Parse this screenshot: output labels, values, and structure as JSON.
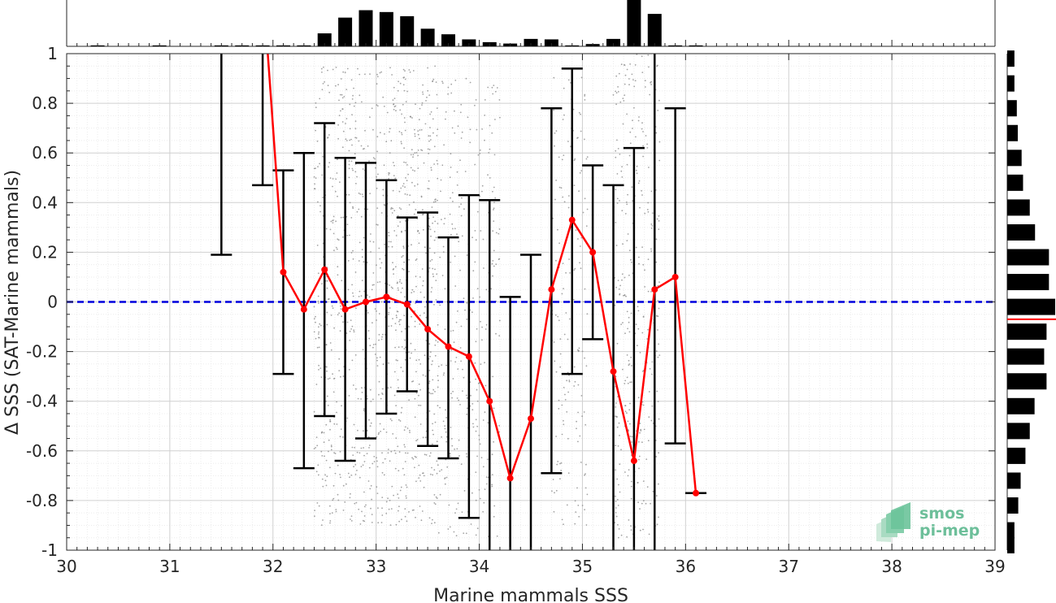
{
  "chart_data": {
    "type": "line",
    "xlabel": "Marine mammals SSS",
    "ylabel": "Δ SSS (SAT-Marine mammals)",
    "xlim": [
      30,
      39
    ],
    "ylim": [
      -1,
      1
    ],
    "xticks": [
      "30",
      "31",
      "32",
      "33",
      "34",
      "35",
      "36",
      "37",
      "38",
      "39"
    ],
    "yticks": [
      "-1",
      "-0.8",
      "-0.6",
      "-0.4",
      "-0.2",
      "0",
      "0.2",
      "0.4",
      "0.6",
      "0.8",
      "1"
    ],
    "grid": true,
    "reference_line": {
      "y": 0,
      "color": "#0000dd",
      "style": "dashed"
    },
    "series": [
      {
        "color": "#ff0000",
        "x": [
          32.1,
          32.3,
          32.5,
          32.7,
          32.9,
          33.1,
          33.3,
          33.5,
          33.7,
          33.9,
          34.1,
          34.3,
          34.5,
          34.7,
          34.9,
          35.1,
          35.3,
          35.5,
          35.7,
          35.9,
          36.1
        ],
        "y": [
          0.12,
          -0.03,
          0.13,
          -0.03,
          0.0,
          0.02,
          -0.01,
          -0.11,
          -0.18,
          -0.22,
          -0.4,
          -0.71,
          -0.47,
          0.05,
          0.33,
          0.2,
          -0.28,
          -0.64,
          0.05,
          0.1,
          -0.77
        ]
      }
    ],
    "error_bars": [
      {
        "x": 31.5,
        "low": 0.19,
        "high": 1.0
      },
      {
        "x": 31.9,
        "low": 0.47,
        "high": 1.0
      },
      {
        "x": 32.1,
        "low": -0.29,
        "high": 0.53
      },
      {
        "x": 32.3,
        "low": -0.67,
        "high": 0.6
      },
      {
        "x": 32.5,
        "low": -0.46,
        "high": 0.72
      },
      {
        "x": 32.7,
        "low": -0.64,
        "high": 0.58
      },
      {
        "x": 32.9,
        "low": -0.55,
        "high": 0.56
      },
      {
        "x": 33.1,
        "low": -0.45,
        "high": 0.49
      },
      {
        "x": 33.3,
        "low": -0.36,
        "high": 0.34
      },
      {
        "x": 33.5,
        "low": -0.58,
        "high": 0.36
      },
      {
        "x": 33.7,
        "low": -0.63,
        "high": 0.26
      },
      {
        "x": 33.9,
        "low": -0.87,
        "high": 0.43
      },
      {
        "x": 34.1,
        "low": -1.0,
        "high": 0.41
      },
      {
        "x": 34.3,
        "low": -1.0,
        "high": 0.02
      },
      {
        "x": 34.5,
        "low": -1.0,
        "high": 0.19
      },
      {
        "x": 34.7,
        "low": -0.69,
        "high": 0.78
      },
      {
        "x": 34.9,
        "low": -0.29,
        "high": 0.94
      },
      {
        "x": 35.1,
        "low": -0.15,
        "high": 0.55
      },
      {
        "x": 35.3,
        "low": -1.0,
        "high": 0.47
      },
      {
        "x": 35.5,
        "low": -1.0,
        "high": 0.62
      },
      {
        "x": 35.7,
        "low": -1.0,
        "high": 1.0
      },
      {
        "x": 35.9,
        "low": -0.57,
        "high": 0.78
      },
      {
        "x": 36.1,
        "low": -0.77,
        "high": -0.77
      }
    ],
    "scatter_regions": [
      {
        "x_from": 32.4,
        "x_to": 33.6,
        "y_from": -0.9,
        "y_to": 0.95,
        "count": 1000
      },
      {
        "x_from": 33.5,
        "x_to": 34.2,
        "y_from": -1.0,
        "y_to": 0.9,
        "count": 360
      },
      {
        "x_from": 34.7,
        "x_to": 35.05,
        "y_from": -0.9,
        "y_to": 0.95,
        "count": 160
      },
      {
        "x_from": 35.3,
        "x_to": 35.75,
        "y_from": -0.95,
        "y_to": 1.0,
        "count": 340
      }
    ],
    "top_histogram": {
      "bin_centers": [
        30.3,
        30.5,
        30.7,
        30.9,
        31.1,
        31.3,
        31.5,
        31.7,
        31.9,
        32.1,
        32.3,
        32.5,
        32.7,
        32.9,
        33.1,
        33.3,
        33.5,
        33.7,
        33.9,
        34.1,
        34.3,
        34.5,
        34.7,
        34.9,
        35.1,
        35.3,
        35.5,
        35.7,
        35.9,
        36.1
      ],
      "values": [
        0.02,
        0,
        0,
        0.02,
        0,
        0,
        0.02,
        0.02,
        0.02,
        0.02,
        0.02,
        0.28,
        0.62,
        0.78,
        0.74,
        0.65,
        0.38,
        0.26,
        0.15,
        0.09,
        0.06,
        0.16,
        0.15,
        0.02,
        0.05,
        0.16,
        1.0,
        0.7,
        0.02,
        0.02
      ]
    },
    "right_histogram": {
      "color": "#ff0000",
      "reference_y": -0.07,
      "bin_centers": [
        0.98,
        0.88,
        0.78,
        0.68,
        0.58,
        0.48,
        0.38,
        0.28,
        0.18,
        0.08,
        -0.02,
        -0.12,
        -0.22,
        -0.32,
        -0.42,
        -0.52,
        -0.62,
        -0.72,
        -0.82,
        -0.92,
        -0.98
      ],
      "values": [
        0.15,
        0.15,
        0.2,
        0.22,
        0.3,
        0.33,
        0.47,
        0.58,
        0.87,
        0.87,
        1.0,
        0.82,
        0.77,
        0.82,
        0.57,
        0.47,
        0.38,
        0.28,
        0.23,
        0.15,
        0.15
      ]
    }
  },
  "logo": {
    "line1": "smos",
    "line2": "pi-mep"
  }
}
